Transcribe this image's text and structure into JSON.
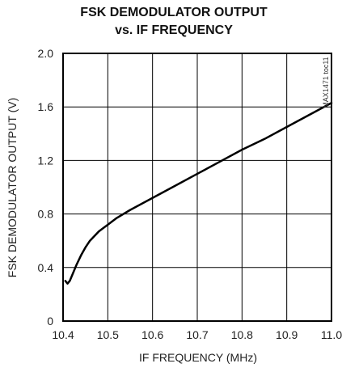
{
  "chart_data": {
    "type": "line",
    "title_line1": "FSK DEMODULATOR OUTPUT",
    "title_line2": "vs. IF FREQUENCY",
    "xlabel": "IF FREQUENCY (MHz)",
    "ylabel": "FSK DEMODULATOR OUTPUT (V)",
    "xlim": [
      10.4,
      11.0
    ],
    "ylim": [
      0,
      2.0
    ],
    "x_ticks": [
      "10.4",
      "10.5",
      "10.6",
      "10.7",
      "10.8",
      "10.9",
      "11.0"
    ],
    "y_ticks": [
      "0",
      "0.4",
      "0.8",
      "1.2",
      "1.6",
      "2.0"
    ],
    "grid": true,
    "annotation": "MAX1471 toc11",
    "series": [
      {
        "x": [
          10.405,
          10.41,
          10.415,
          10.42,
          10.43,
          10.44,
          10.45,
          10.46,
          10.48,
          10.5,
          10.52,
          10.55,
          10.6,
          10.65,
          10.7,
          10.75,
          10.8,
          10.85,
          10.9,
          10.95,
          11.0
        ],
        "y": [
          0.3,
          0.28,
          0.3,
          0.34,
          0.42,
          0.49,
          0.55,
          0.6,
          0.67,
          0.72,
          0.77,
          0.83,
          0.92,
          1.01,
          1.1,
          1.19,
          1.28,
          1.36,
          1.45,
          1.54,
          1.63
        ]
      }
    ]
  }
}
